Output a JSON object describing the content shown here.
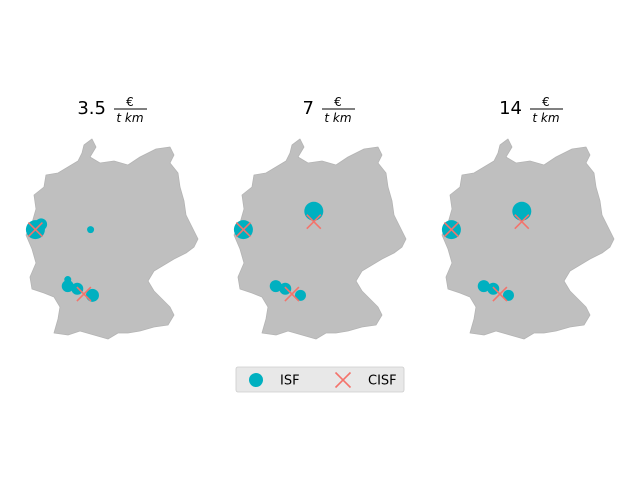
{
  "chart_data": {
    "type": "scatter",
    "map_region": "Germany",
    "map_fill_color": "#bfbfbf",
    "series": [
      {
        "name": "ISF",
        "marker": "circle",
        "color": "#00b0c0"
      },
      {
        "name": "CISF",
        "marker": "x",
        "color": "#f4736b"
      }
    ],
    "legend_position": "bottom-center",
    "panels": [
      {
        "title_value": "3.5",
        "title_unit_num": "€",
        "title_unit_den": "t km",
        "isf": [
          {
            "lon": 6.5,
            "lat": 51.45,
            "size": "large"
          },
          {
            "lon": 6.8,
            "lat": 51.65,
            "size": "small"
          },
          {
            "lon": 9.4,
            "lat": 51.45,
            "size": "tiny"
          },
          {
            "lon": 8.2,
            "lat": 49.55,
            "size": "tiny"
          },
          {
            "lon": 8.2,
            "lat": 49.3,
            "size": "small"
          },
          {
            "lon": 8.7,
            "lat": 49.2,
            "size": "small"
          },
          {
            "lon": 9.5,
            "lat": 48.95,
            "size": "medium"
          }
        ],
        "cisf": [
          {
            "lon": 6.5,
            "lat": 51.45
          },
          {
            "lon": 9.05,
            "lat": 49.0
          }
        ]
      },
      {
        "title_value": "7",
        "title_unit_num": "€",
        "title_unit_den": "t km",
        "isf": [
          {
            "lon": 6.5,
            "lat": 51.45,
            "size": "large"
          },
          {
            "lon": 10.2,
            "lat": 52.15,
            "size": "large"
          },
          {
            "lon": 8.2,
            "lat": 49.3,
            "size": "small"
          },
          {
            "lon": 8.7,
            "lat": 49.2,
            "size": "small"
          },
          {
            "lon": 9.5,
            "lat": 48.95,
            "size": "tiny2"
          }
        ],
        "cisf": [
          {
            "lon": 6.5,
            "lat": 51.45
          },
          {
            "lon": 10.2,
            "lat": 51.75
          },
          {
            "lon": 9.05,
            "lat": 49.0
          }
        ]
      },
      {
        "title_value": "14",
        "title_unit_num": "€",
        "title_unit_den": "t km",
        "isf": [
          {
            "lon": 6.5,
            "lat": 51.45,
            "size": "large"
          },
          {
            "lon": 10.2,
            "lat": 52.15,
            "size": "large"
          },
          {
            "lon": 8.2,
            "lat": 49.3,
            "size": "small"
          },
          {
            "lon": 8.7,
            "lat": 49.2,
            "size": "small"
          },
          {
            "lon": 9.5,
            "lat": 48.95,
            "size": "tiny2"
          }
        ],
        "cisf": [
          {
            "lon": 6.5,
            "lat": 51.45
          },
          {
            "lon": 10.2,
            "lat": 51.75
          },
          {
            "lon": 9.05,
            "lat": 49.0
          }
        ]
      }
    ]
  }
}
